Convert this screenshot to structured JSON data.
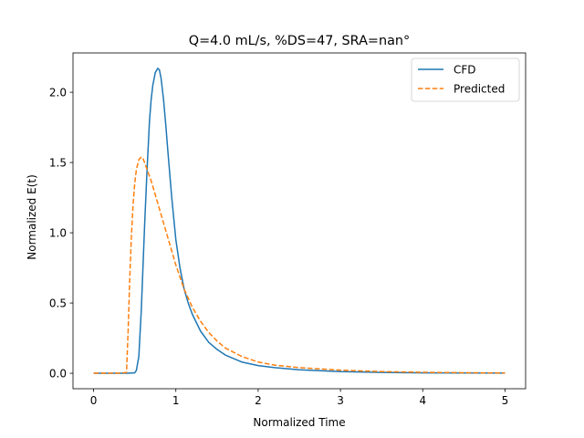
{
  "chart_data": {
    "type": "line",
    "title": "Q=4.0 mL/s, %DS=47, SRA=nan°",
    "xlabel": "Normalized Time",
    "ylabel": "Normalized E(t)",
    "xlim": [
      -0.25,
      5.25
    ],
    "ylim": [
      -0.11,
      2.28
    ],
    "xticks": [
      0,
      1,
      2,
      3,
      4,
      5
    ],
    "xtick_labels": [
      "0",
      "1",
      "2",
      "3",
      "4",
      "5"
    ],
    "yticks": [
      0.0,
      0.5,
      1.0,
      1.5,
      2.0
    ],
    "ytick_labels": [
      "0.0",
      "0.5",
      "1.0",
      "1.5",
      "2.0"
    ],
    "grid": false,
    "legend_position": "top-right",
    "series": [
      {
        "name": "CFD",
        "color": "#1f77b4",
        "style": "solid",
        "x": [
          0,
          0.4,
          0.5,
          0.52,
          0.55,
          0.58,
          0.6,
          0.62,
          0.65,
          0.68,
          0.7,
          0.72,
          0.75,
          0.78,
          0.8,
          0.82,
          0.85,
          0.88,
          0.9,
          0.95,
          1.0,
          1.05,
          1.1,
          1.15,
          1.2,
          1.3,
          1.4,
          1.5,
          1.6,
          1.8,
          2.0,
          2.2,
          2.5,
          3.0,
          3.5,
          4.0,
          4.5,
          5.0
        ],
        "y": [
          0,
          0,
          0.003,
          0.02,
          0.12,
          0.45,
          0.75,
          1.05,
          1.45,
          1.8,
          1.95,
          2.05,
          2.14,
          2.17,
          2.16,
          2.1,
          1.95,
          1.75,
          1.6,
          1.25,
          0.95,
          0.75,
          0.6,
          0.5,
          0.42,
          0.3,
          0.22,
          0.17,
          0.13,
          0.08,
          0.055,
          0.04,
          0.025,
          0.012,
          0.006,
          0.003,
          0.002,
          0.001
        ]
      },
      {
        "name": "Predicted",
        "color": "#ff7f0e",
        "style": "dashed",
        "x": [
          0,
          0.3,
          0.4,
          0.42,
          0.44,
          0.46,
          0.48,
          0.5,
          0.52,
          0.55,
          0.58,
          0.6,
          0.62,
          0.65,
          0.7,
          0.75,
          0.8,
          0.85,
          0.9,
          0.95,
          1.0,
          1.1,
          1.2,
          1.3,
          1.4,
          1.5,
          1.6,
          1.8,
          2.0,
          2.2,
          2.5,
          3.0,
          3.5,
          4.0,
          4.5,
          5.0
        ],
        "y": [
          0,
          0,
          0.005,
          0.3,
          0.68,
          0.98,
          1.2,
          1.35,
          1.45,
          1.52,
          1.54,
          1.53,
          1.5,
          1.45,
          1.37,
          1.27,
          1.17,
          1.07,
          0.97,
          0.87,
          0.77,
          0.6,
          0.47,
          0.37,
          0.29,
          0.23,
          0.18,
          0.12,
          0.08,
          0.058,
          0.04,
          0.022,
          0.012,
          0.007,
          0.004,
          0.002
        ]
      }
    ]
  }
}
